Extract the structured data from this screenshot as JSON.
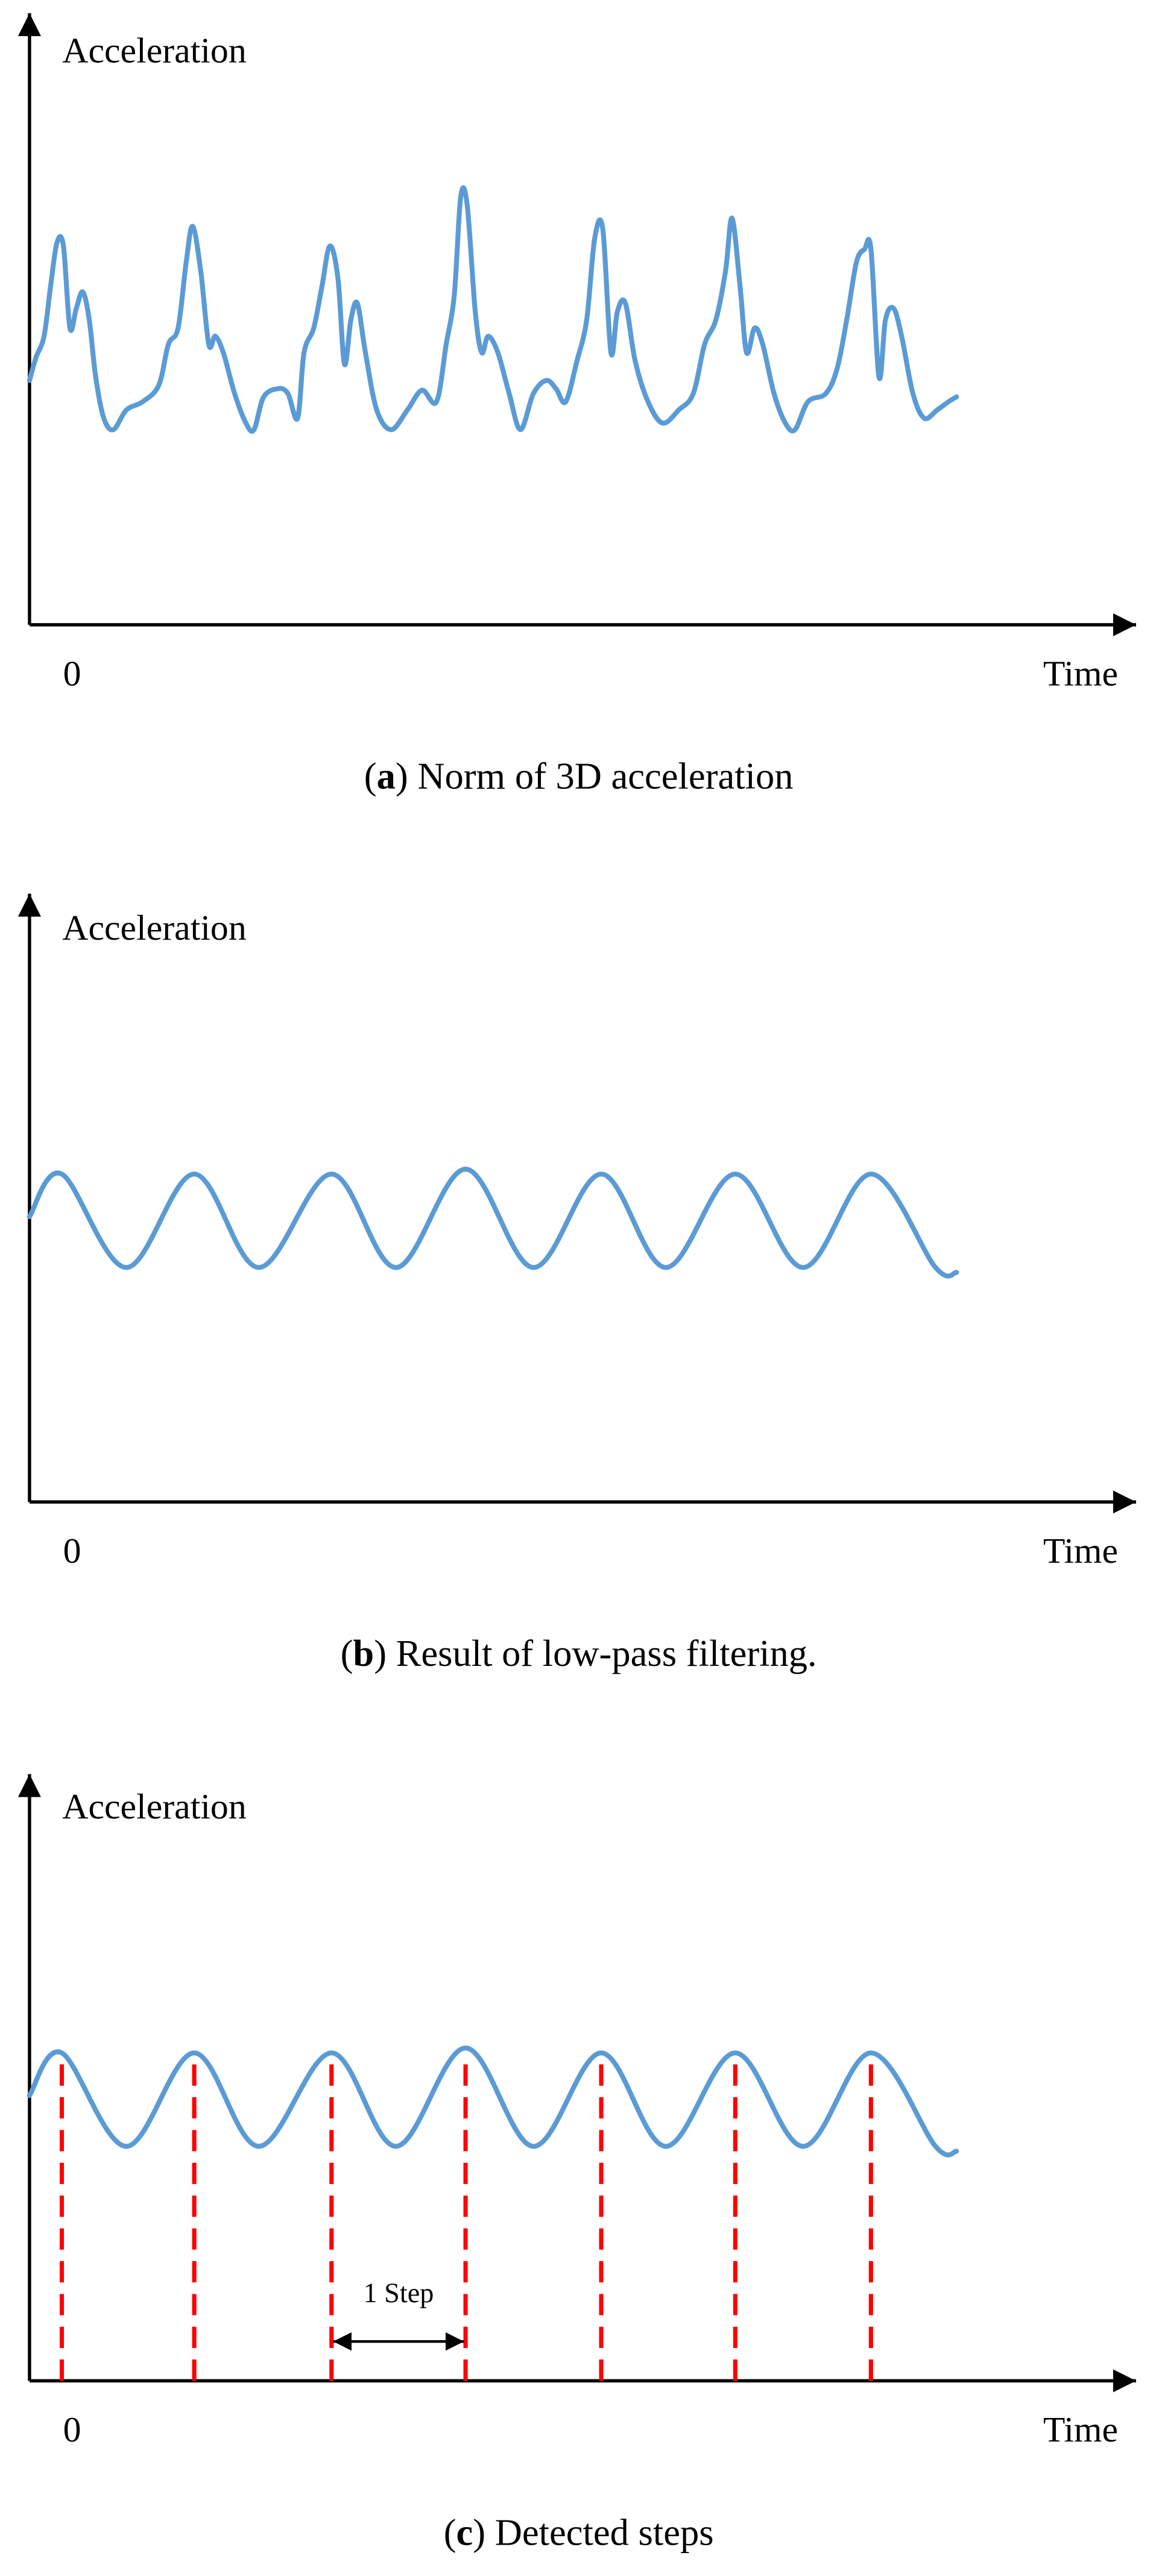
{
  "chart_data": [
    {
      "type": "line",
      "y_label": "Acceleration",
      "x_label": "Time",
      "xticks": [
        0
      ],
      "xlim": [
        0,
        675
      ],
      "ylim": [
        0,
        373
      ],
      "caption": [
        "(",
        "a",
        ") Norm of 3D acceleration"
      ],
      "x": [
        0,
        4,
        9,
        13,
        17,
        21,
        25,
        29,
        33,
        37,
        41,
        46,
        52,
        60,
        70,
        80,
        86,
        92,
        97,
        101,
        106,
        111,
        115,
        120,
        127,
        134,
        139,
        145,
        154,
        160,
        166,
        170,
        176,
        181,
        186,
        191,
        195,
        199,
        203,
        208,
        215,
        224,
        234,
        243,
        252,
        258,
        263,
        267,
        271,
        276,
        280,
        284,
        290,
        297,
        304,
        312,
        320,
        326,
        332,
        339,
        345,
        350,
        355,
        360,
        364,
        369,
        375,
        383,
        392,
        402,
        411,
        418,
        425,
        431,
        435,
        440,
        444,
        449,
        454,
        461,
        468,
        474,
        482,
        493,
        500,
        506,
        512,
        517,
        521,
        526,
        530,
        535,
        540,
        547,
        554,
        562,
        569,
        574
      ],
      "series": [
        {
          "color": "#5b9bd5",
          "values": [
            149,
            163,
            176,
            206,
            233,
            231,
            181,
            193,
            203,
            186,
            151,
            126,
            119,
            131,
            136,
            146,
            171,
            181,
            221,
            243,
            216,
            171,
            176,
            166,
            141,
            123,
            119,
            139,
            144,
            141,
            126,
            166,
            181,
            206,
            231,
            211,
            159,
            186,
            196,
            166,
            131,
            119,
            131,
            143,
            136,
            171,
            201,
            261,
            256,
            191,
            166,
            176,
            166,
            141,
            119,
            141,
            149,
            144,
            136,
            161,
            186,
            236,
            241,
            166,
            191,
            196,
            161,
            136,
            123,
            131,
            141,
            171,
            186,
            216,
            248,
            206,
            166,
            181,
            171,
            141,
            123,
            119,
            136,
            141,
            156,
            186,
            221,
            229,
            229,
            151,
            186,
            193,
            176,
            141,
            126,
            131,
            136,
            139
          ]
        }
      ]
    },
    {
      "type": "line",
      "y_label": "Acceleration",
      "x_label": "Time",
      "xticks": [
        0
      ],
      "xlim": [
        0,
        675
      ],
      "ylim": [
        0,
        373
      ],
      "caption": [
        "(",
        "b",
        ") Result of low-pass filtering."
      ],
      "x": [
        0,
        20,
        60,
        102,
        142,
        187,
        227,
        270,
        312,
        354,
        394,
        437,
        479,
        521,
        561,
        574
      ],
      "series": [
        {
          "color": "#5b9bd5",
          "values": [
            174,
            200,
            143,
            200,
            143,
            200,
            143,
            203,
            143,
            200,
            143,
            200,
            143,
            200,
            143,
            140
          ]
        }
      ]
    },
    {
      "type": "line",
      "y_label": "Acceleration",
      "x_label": "Time",
      "xticks": [
        0
      ],
      "xlim": [
        0,
        675
      ],
      "ylim": [
        0,
        373
      ],
      "caption": [
        "(",
        "c",
        ") Detected steps"
      ],
      "x": [
        0,
        20,
        60,
        102,
        142,
        187,
        227,
        270,
        312,
        354,
        394,
        437,
        479,
        521,
        561,
        574
      ],
      "series": [
        {
          "color": "#5b9bd5",
          "values": [
            174,
            200,
            143,
            200,
            143,
            200,
            143,
            203,
            143,
            200,
            143,
            200,
            143,
            200,
            143,
            140
          ]
        }
      ],
      "steps": [
        20,
        102,
        187,
        270,
        354,
        437,
        521
      ],
      "step_color": "#ff0000",
      "annotation": "1 Step"
    }
  ]
}
